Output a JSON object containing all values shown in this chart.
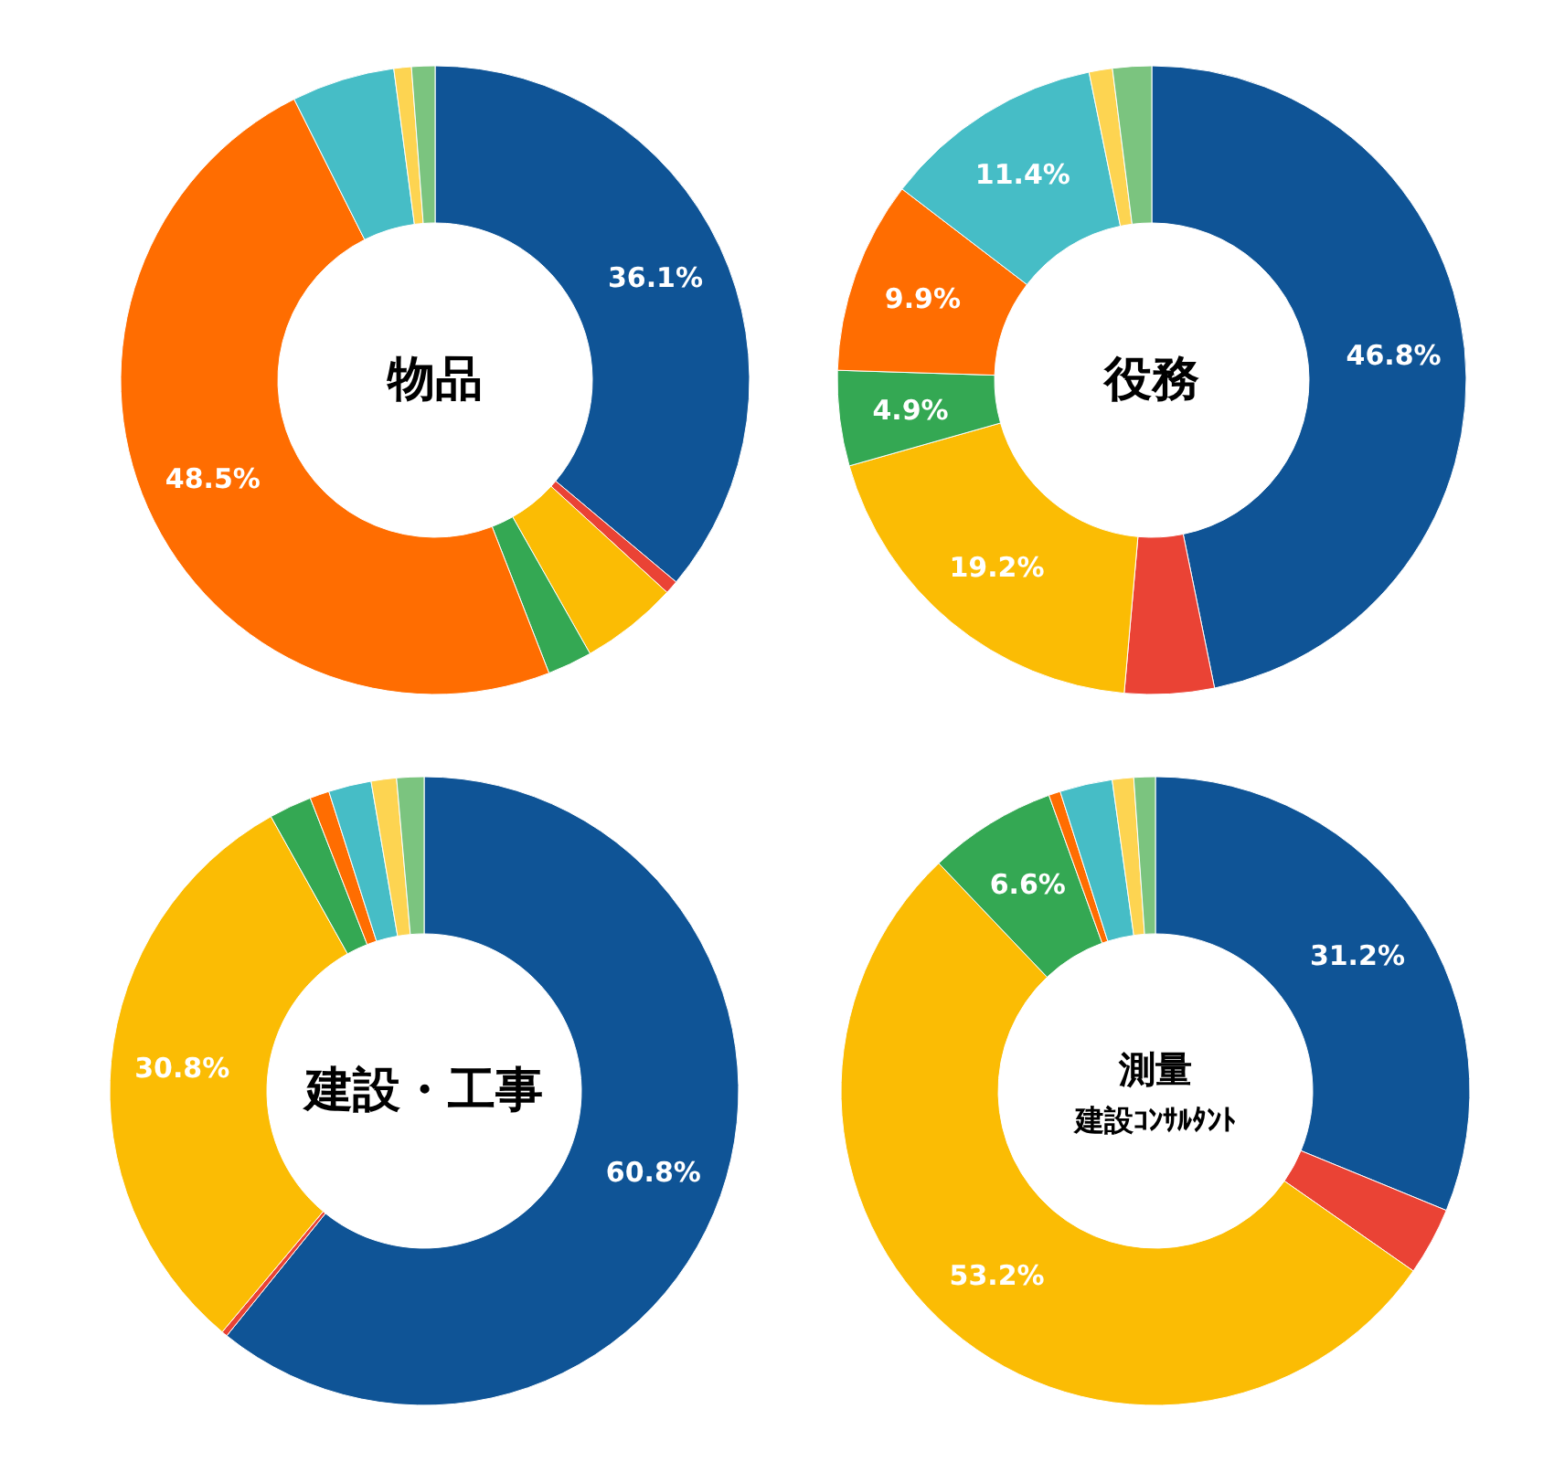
{
  "chart_data": [
    {
      "type": "donut",
      "title": "物品",
      "categories": [
        null,
        null,
        null,
        null,
        null,
        null,
        null,
        null
      ],
      "values": [
        36.1,
        0.7,
        5.0,
        2.3,
        48.5,
        5.3,
        0.9,
        1.2
      ],
      "colors": [
        "#0f5496",
        "#ea4335",
        "#fbbc04",
        "#34a853",
        "#ff6d01",
        "#46bdc6",
        "#fdd451",
        "#7bc47f"
      ],
      "value_labels": [
        "36.1%",
        null,
        null,
        null,
        "48.5%",
        null,
        null,
        null
      ]
    },
    {
      "type": "donut",
      "title": "役務",
      "categories": [
        null,
        null,
        null,
        null,
        null,
        null,
        null,
        null
      ],
      "values": [
        46.8,
        4.6,
        19.2,
        4.9,
        9.9,
        11.4,
        1.2,
        2.0
      ],
      "colors": [
        "#0f5496",
        "#ea4335",
        "#fbbc04",
        "#34a853",
        "#ff6d01",
        "#46bdc6",
        "#fdd451",
        "#7bc47f"
      ],
      "value_labels": [
        "46.8%",
        null,
        "19.2%",
        "4.9%",
        "9.9%",
        "11.4%",
        null,
        null
      ]
    },
    {
      "type": "donut",
      "title": "建設・工事",
      "categories": [
        null,
        null,
        null,
        null,
        null,
        null,
        null,
        null
      ],
      "values": [
        60.8,
        0.3,
        30.8,
        2.2,
        1.0,
        2.2,
        1.3,
        1.4
      ],
      "colors": [
        "#0f5496",
        "#ea4335",
        "#fbbc04",
        "#34a853",
        "#ff6d01",
        "#46bdc6",
        "#fdd451",
        "#7bc47f"
      ],
      "value_labels": [
        "60.8%",
        null,
        "30.8%",
        null,
        null,
        null,
        null,
        null
      ]
    },
    {
      "type": "donut",
      "title": "測量",
      "subtitle": "建設ｺﾝｻﾙﾀﾝﾄ",
      "categories": [
        null,
        null,
        null,
        null,
        null,
        null,
        null,
        null
      ],
      "values": [
        31.2,
        3.5,
        53.2,
        6.6,
        0.6,
        2.7,
        1.1,
        1.1
      ],
      "colors": [
        "#0f5496",
        "#ea4335",
        "#fbbc04",
        "#34a853",
        "#ff6d01",
        "#46bdc6",
        "#fdd451",
        "#7bc47f"
      ],
      "value_labels": [
        "31.2%",
        null,
        "53.2%",
        "6.6%",
        null,
        null,
        null,
        null
      ]
    }
  ]
}
